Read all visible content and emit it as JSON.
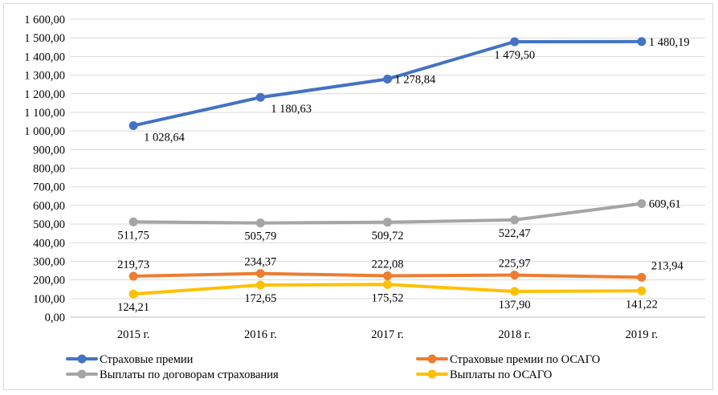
{
  "chart_data": {
    "type": "line",
    "categories": [
      "2015 г.",
      "2016 г.",
      "2017 г.",
      "2018 г.",
      "2019 г."
    ],
    "ylim": [
      0,
      1600
    ],
    "y_ticks": [
      "0,00",
      "100,00",
      "200,00",
      "300,00",
      "400,00",
      "500,00",
      "600,00",
      "700,00",
      "800,00",
      "900,00",
      "1 000,00",
      "1 100,00",
      "1 200,00",
      "1 300,00",
      "1 400,00",
      "1 500,00",
      "1 600,00"
    ],
    "grid": "horizontal",
    "legend_position": "bottom",
    "series": [
      {
        "name": "Страховые премии",
        "color": "#4472c4",
        "values": [
          1028.64,
          1180.63,
          1278.84,
          1479.5,
          1480.19
        ],
        "labels": [
          "1 028,64",
          "1 180,63",
          "1 278,84",
          "1 479,50",
          "1 480,19"
        ],
        "label_placement": [
          "below-right",
          "below-right",
          "right",
          "below",
          "right"
        ]
      },
      {
        "name": "Страховые премии по ОСАГО",
        "color": "#ed7d31",
        "values": [
          219.73,
          234.37,
          222.08,
          225.97,
          213.94
        ],
        "labels": [
          "219,73",
          "234,37",
          "222,08",
          "225,97",
          "213,94"
        ],
        "label_placement": [
          "above",
          "above",
          "above",
          "above",
          "above-right"
        ]
      },
      {
        "name": "Выплаты по договорам страхования",
        "color": "#a5a5a5",
        "values": [
          511.75,
          505.79,
          509.72,
          522.47,
          609.61
        ],
        "labels": [
          "511,75",
          "505,79",
          "509,72",
          "522,47",
          "609,61"
        ],
        "label_placement": [
          "below",
          "below",
          "below",
          "below",
          "right"
        ]
      },
      {
        "name": "Выплаты  по ОСАГО",
        "color": "#ffc000",
        "values": [
          124.21,
          172.65,
          175.52,
          137.9,
          141.22
        ],
        "labels": [
          "124,21",
          "172,65",
          "175,52",
          "137,90",
          "141,22"
        ],
        "label_placement": [
          "below",
          "below",
          "below",
          "below",
          "below"
        ]
      }
    ]
  }
}
